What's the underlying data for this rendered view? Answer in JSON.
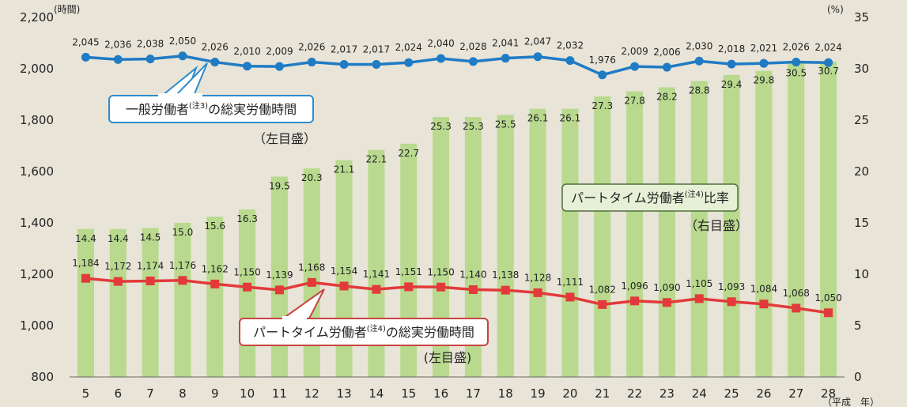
{
  "chart_data": {
    "type": "bar",
    "categories": [
      "5",
      "6",
      "7",
      "8",
      "9",
      "10",
      "11",
      "12",
      "13",
      "14",
      "15",
      "16",
      "17",
      "18",
      "19",
      "20",
      "21",
      "22",
      "23",
      "24",
      "25",
      "26",
      "27",
      "28"
    ],
    "x_unit_label": "（平成　年）",
    "y_left": {
      "unit_label": "(時間)",
      "ylim": [
        800,
        2200
      ],
      "ticks": [
        "800",
        "1,000",
        "1,200",
        "1,400",
        "1,600",
        "1,800",
        "2,000",
        "2,200"
      ]
    },
    "y_right": {
      "unit_label": "(%)",
      "ylim": [
        0,
        35
      ],
      "ticks": [
        "0",
        "5",
        "10",
        "15",
        "20",
        "25",
        "30",
        "35"
      ]
    },
    "grid": false,
    "series": [
      {
        "kind": "bar",
        "axis": "right",
        "color": "#b9d98e",
        "values": [
          14.4,
          14.4,
          14.5,
          15.0,
          15.6,
          16.3,
          19.5,
          20.3,
          21.1,
          22.1,
          22.7,
          25.3,
          25.3,
          25.5,
          26.1,
          26.1,
          27.3,
          27.8,
          28.2,
          28.8,
          29.4,
          29.8,
          30.5,
          30.7
        ],
        "labels": [
          "14.4",
          "14.4",
          "14.5",
          "15.0",
          "15.6",
          "16.3",
          "19.5",
          "20.3",
          "21.1",
          "22.1",
          "22.7",
          "25.3",
          "25.3",
          "25.5",
          "26.1",
          "26.1",
          "27.3",
          "27.8",
          "28.2",
          "28.8",
          "29.4",
          "29.8",
          "30.5",
          "30.7"
        ]
      },
      {
        "kind": "line",
        "axis": "left",
        "color": "#1f7bc4",
        "marker": "circle",
        "values": [
          2045,
          2036,
          2038,
          2050,
          2026,
          2010,
          2009,
          2026,
          2017,
          2017,
          2024,
          2040,
          2028,
          2041,
          2047,
          2032,
          1976,
          2009,
          2006,
          2030,
          2018,
          2021,
          2026,
          2024
        ],
        "labels": [
          "2,045",
          "2,036",
          "2,038",
          "2,050",
          "2,026",
          "2,010",
          "2,009",
          "2,026",
          "2,017",
          "2,017",
          "2,024",
          "2,040",
          "2,028",
          "2,041",
          "2,047",
          "2,032",
          "1,976",
          "2,009",
          "2,006",
          "2,030",
          "2,018",
          "2,021",
          "2,026",
          "2,024"
        ]
      },
      {
        "kind": "line",
        "axis": "left",
        "color": "#e23a3a",
        "marker": "square",
        "values": [
          1184,
          1172,
          1174,
          1176,
          1162,
          1150,
          1139,
          1168,
          1154,
          1141,
          1151,
          1150,
          1140,
          1138,
          1128,
          1111,
          1082,
          1096,
          1090,
          1105,
          1093,
          1084,
          1068,
          1050
        ],
        "labels": [
          "1,184",
          "1,172",
          "1,174",
          "1,176",
          "1,162",
          "1,150",
          "1,139",
          "1,168",
          "1,154",
          "1,141",
          "1,151",
          "1,150",
          "1,140",
          "1,138",
          "1,128",
          "1,111",
          "1,082",
          "1,096",
          "1,090",
          "1,105",
          "1,093",
          "1,084",
          "1,068",
          "1,050"
        ]
      }
    ],
    "callouts": [
      {
        "text": "一般労働者",
        "sup": "(注3)",
        "text2": "の総実労働時間",
        "sub": "（左目盛）"
      },
      {
        "text": "パートタイム労働者",
        "sup": "(注4)",
        "text2": "比率",
        "sub": "（右目盛）"
      },
      {
        "text": "パートタイム労働者",
        "sup": "(注4)",
        "text2": "の総実労働時間",
        "sub": "(左目盛)"
      }
    ]
  }
}
